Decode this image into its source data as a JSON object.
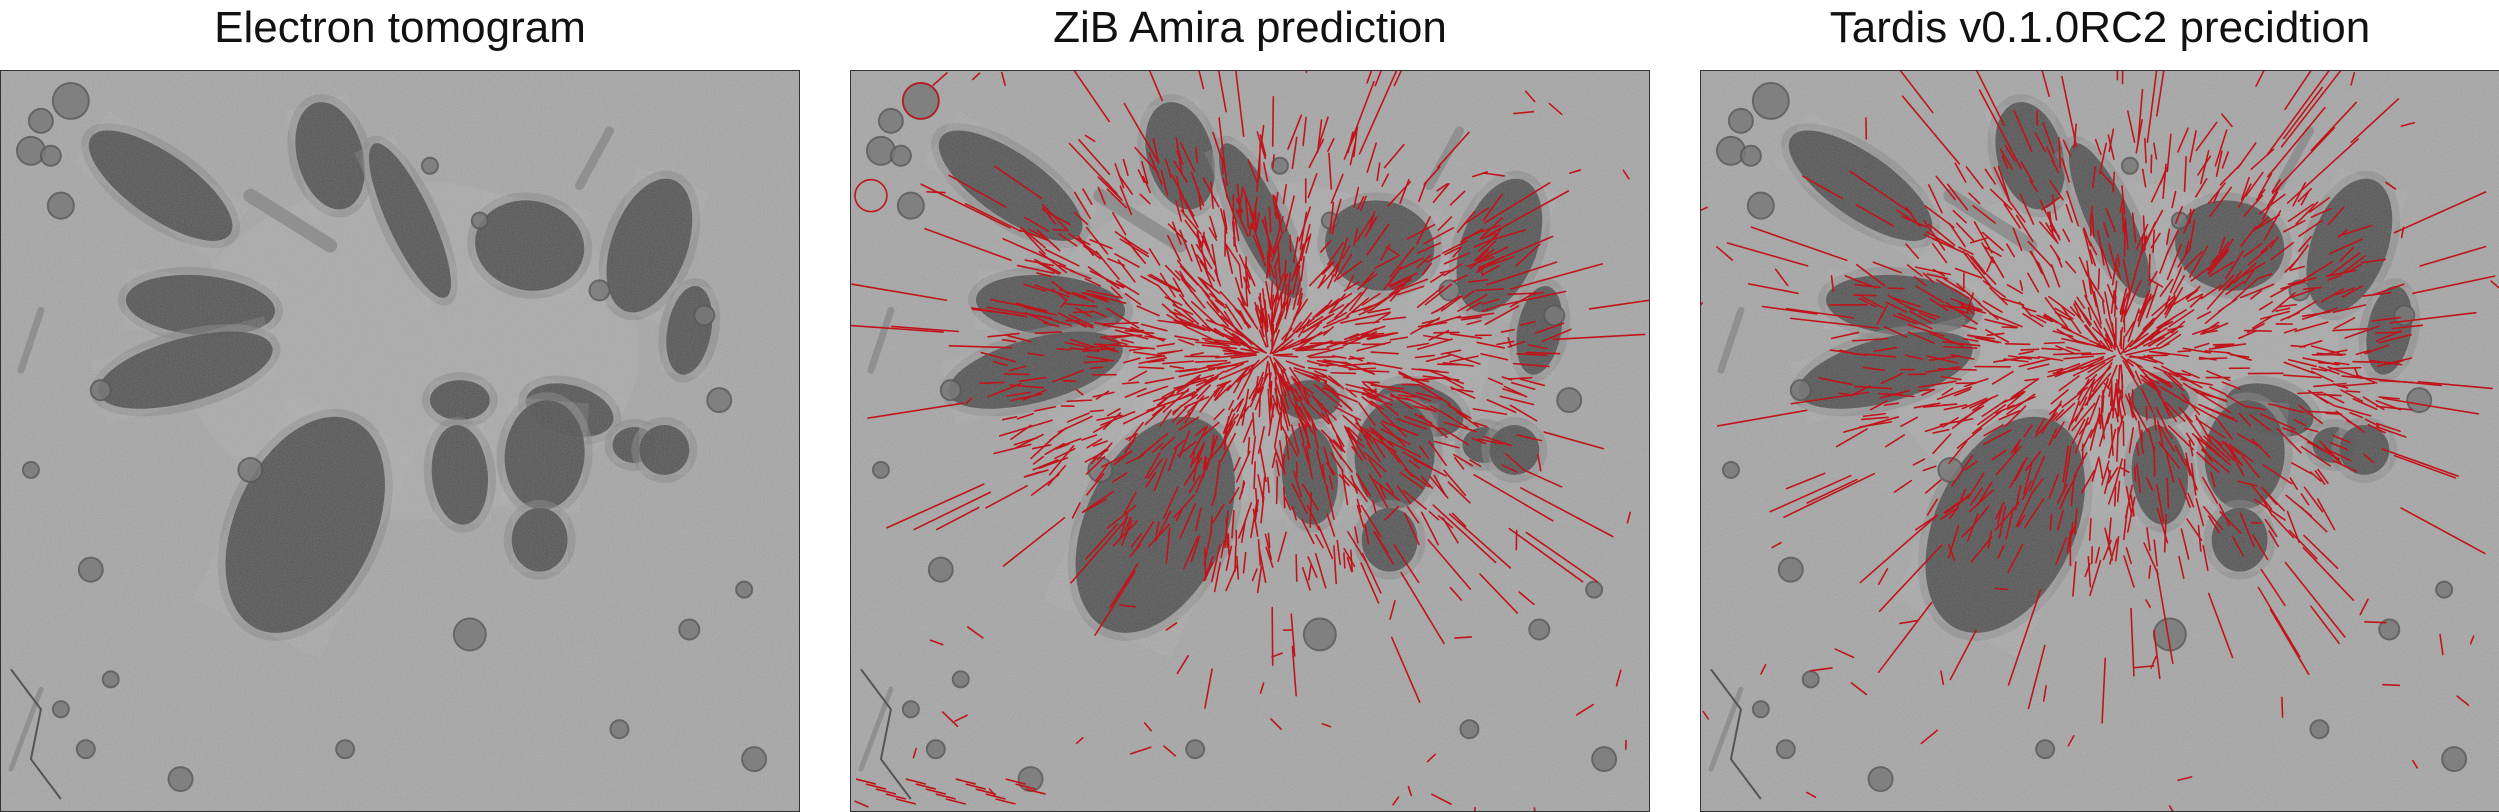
{
  "figure": {
    "panels": [
      {
        "title": "Electron tomogram",
        "overlay": false
      },
      {
        "title": "ZiB Amira prediction",
        "overlay": true
      },
      {
        "title": "Tardis v0.1.0RC2 precidtion",
        "overlay": true
      }
    ],
    "colors": {
      "background_gray": "#9b9b9b",
      "chromosome_dark": "#4a4a4a",
      "prediction_overlay": "#c0141b"
    }
  }
}
